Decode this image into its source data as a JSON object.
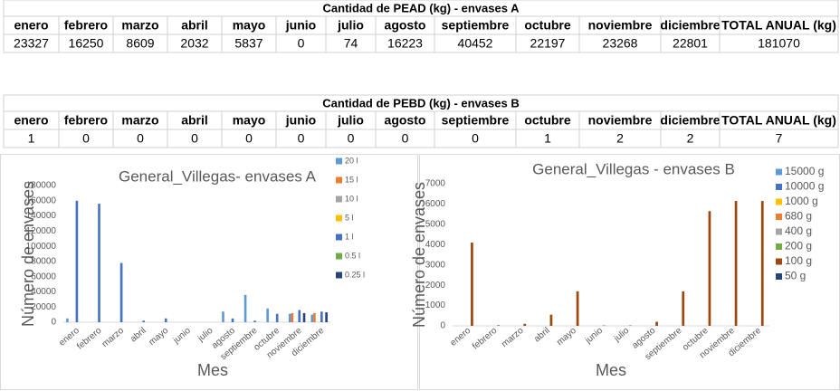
{
  "tables": [
    {
      "title": "Cantidad de PEAD (kg) - envases A",
      "headers": [
        "enero",
        "febrero",
        "marzo",
        "abril",
        "mayo",
        "junio",
        "julio",
        "agosto",
        "septiembre",
        "octubre",
        "noviembre",
        "diciembre",
        "TOTAL ANUAL (kg)"
      ],
      "row": [
        23327,
        16250,
        8609,
        2032,
        5837,
        0,
        74,
        16223,
        40452,
        22197,
        23268,
        22801,
        181070
      ]
    },
    {
      "title": "Cantidad de PEBD (kg) - envases B",
      "headers": [
        "enero",
        "febrero",
        "marzo",
        "abril",
        "mayo",
        "junio",
        "julio",
        "agosto",
        "septiembre",
        "octubre",
        "noviembre",
        "diciembre",
        "TOTAL ANUAL (kg)"
      ],
      "row": [
        1,
        0,
        0,
        0,
        0,
        0,
        0,
        0,
        0,
        1,
        2,
        2,
        7
      ]
    }
  ],
  "chart_data": [
    {
      "type": "bar",
      "title": "General_Villegas- envases A",
      "xlabel": "Mes",
      "ylabel": "Número de envases",
      "categories": [
        "enero",
        "febrero",
        "marzo",
        "abril",
        "mayo",
        "junio",
        "julio",
        "agosto",
        "septiembre",
        "octubre",
        "noviembre",
        "diciembre"
      ],
      "ylim": [
        0,
        180000
      ],
      "yticks": [
        0,
        20000,
        40000,
        60000,
        80000,
        100000,
        120000,
        140000,
        160000,
        180000
      ],
      "series": [
        {
          "name": "20 l",
          "color": "#5b9bd5",
          "values": [
            5000,
            0,
            0,
            0,
            0,
            0,
            0,
            14000,
            36000,
            18000,
            11000,
            10000
          ]
        },
        {
          "name": "15 l",
          "color": "#ed7d31",
          "values": [
            0,
            0,
            0,
            0,
            0,
            0,
            0,
            0,
            0,
            0,
            12000,
            12000
          ]
        },
        {
          "name": "10 l",
          "color": "#a5a5a5",
          "values": [
            0,
            0,
            0,
            0,
            0,
            0,
            0,
            0,
            0,
            0,
            0,
            0
          ]
        },
        {
          "name": "5 l",
          "color": "#ffc000",
          "values": [
            0,
            0,
            0,
            0,
            0,
            0,
            0,
            0,
            0,
            0,
            0,
            0
          ]
        },
        {
          "name": "1 l",
          "color": "#4472c4",
          "values": [
            160000,
            156000,
            78000,
            2000,
            5000,
            0,
            0,
            5000,
            2000,
            11000,
            16000,
            14000
          ]
        },
        {
          "name": "0.5 l",
          "color": "#70ad47",
          "values": [
            0,
            0,
            0,
            0,
            0,
            0,
            0,
            0,
            0,
            0,
            0,
            0
          ]
        },
        {
          "name": "0.25 l",
          "color": "#264478",
          "values": [
            0,
            0,
            0,
            0,
            0,
            0,
            0,
            0,
            0,
            0,
            12000,
            13000
          ]
        }
      ]
    },
    {
      "type": "bar",
      "title": "General_Villegas - envases B",
      "xlabel": "Mes",
      "ylabel": "Número de envases",
      "categories": [
        "enero",
        "febrero",
        "marzo",
        "abril",
        "mayo",
        "junio",
        "julio",
        "agosto",
        "septiembre",
        "octubre",
        "noviembre",
        "diciembre"
      ],
      "ylim": [
        0,
        7000
      ],
      "yticks": [
        0,
        1000,
        2000,
        3000,
        4000,
        5000,
        6000,
        7000
      ],
      "series": [
        {
          "name": "15000 g",
          "color": "#5b9bd5",
          "values": [
            0,
            0,
            0,
            0,
            0,
            0,
            0,
            0,
            0,
            0,
            0,
            0
          ]
        },
        {
          "name": "10000 g",
          "color": "#4472c4",
          "values": [
            0,
            0,
            0,
            0,
            0,
            0,
            0,
            0,
            0,
            0,
            0,
            0
          ]
        },
        {
          "name": "1000 g",
          "color": "#ffc000",
          "values": [
            0,
            0,
            0,
            0,
            0,
            0,
            0,
            0,
            0,
            0,
            0,
            0
          ]
        },
        {
          "name": "680 g",
          "color": "#ed7d31",
          "values": [
            0,
            0,
            0,
            0,
            0,
            0,
            0,
            0,
            0,
            0,
            0,
            0
          ]
        },
        {
          "name": "400 g",
          "color": "#a5a5a5",
          "values": [
            0,
            0,
            0,
            0,
            0,
            0,
            0,
            0,
            0,
            0,
            0,
            0
          ]
        },
        {
          "name": "200 g",
          "color": "#70ad47",
          "values": [
            0,
            0,
            0,
            0,
            0,
            0,
            0,
            0,
            0,
            0,
            0,
            0
          ]
        },
        {
          "name": "100 g",
          "color": "#9e480e",
          "values": [
            4100,
            30,
            100,
            550,
            1700,
            20,
            20,
            200,
            1700,
            5650,
            6150,
            6150
          ]
        },
        {
          "name": "50 g",
          "color": "#264478",
          "values": [
            0,
            0,
            0,
            0,
            0,
            0,
            0,
            0,
            0,
            0,
            0,
            0
          ]
        }
      ]
    }
  ]
}
